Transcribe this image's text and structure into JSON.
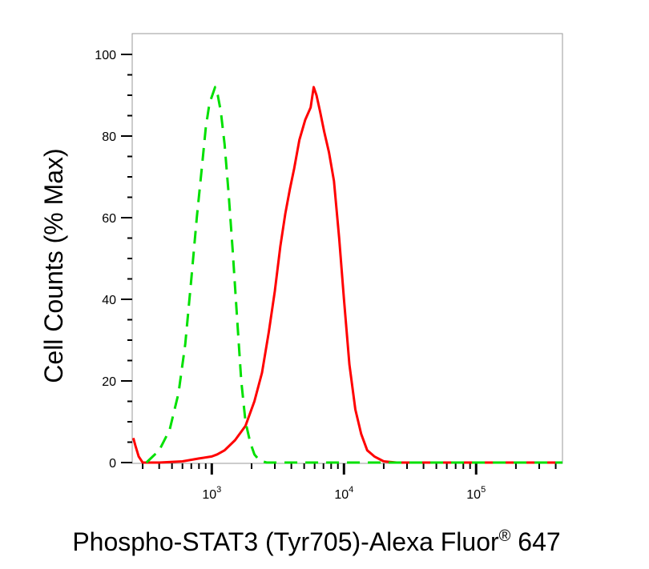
{
  "chart_data": {
    "type": "line",
    "title": "",
    "xlabel": "Phospho-STAT3 (Tyr705)-Alexa Fluor",
    "xlabel_superscript": "®",
    "xlabel_suffix": " 647",
    "ylabel": "Cell Counts (% Max)",
    "x_scale": "log",
    "xlim": [
      250,
      450000
    ],
    "ylim": [
      0,
      100
    ],
    "grid": false,
    "legend": "none",
    "y_ticks": [
      {
        "value": 0,
        "label": "0"
      },
      {
        "value": 20,
        "label": "20"
      },
      {
        "value": 40,
        "label": "40"
      },
      {
        "value": 60,
        "label": "60"
      },
      {
        "value": 80,
        "label": "80"
      },
      {
        "value": 100,
        "label": "100"
      }
    ],
    "x_ticks": [
      {
        "value": 1000,
        "base": "10",
        "exp": "3"
      },
      {
        "value": 10000,
        "base": "10",
        "exp": "4"
      },
      {
        "value": 100000,
        "base": "10",
        "exp": "5"
      }
    ],
    "series": [
      {
        "color": "#ff0000",
        "style": "solid",
        "points": [
          [
            255,
            6
          ],
          [
            265,
            4
          ],
          [
            280,
            1.5
          ],
          [
            300,
            0
          ],
          [
            400,
            0
          ],
          [
            600,
            0.3
          ],
          [
            800,
            1
          ],
          [
            1000,
            1.5
          ],
          [
            1100,
            2
          ],
          [
            1250,
            3
          ],
          [
            1500,
            5.5
          ],
          [
            1800,
            9
          ],
          [
            2100,
            15
          ],
          [
            2400,
            22
          ],
          [
            2700,
            32
          ],
          [
            3000,
            42
          ],
          [
            3300,
            53
          ],
          [
            3600,
            61
          ],
          [
            3900,
            67
          ],
          [
            4200,
            72
          ],
          [
            4600,
            79
          ],
          [
            5100,
            84
          ],
          [
            5600,
            87
          ],
          [
            5900,
            92
          ],
          [
            6200,
            90
          ],
          [
            6600,
            86
          ],
          [
            7100,
            81
          ],
          [
            7700,
            76
          ],
          [
            8400,
            69
          ],
          [
            9200,
            55
          ],
          [
            10000,
            40
          ],
          [
            11000,
            24
          ],
          [
            12200,
            13
          ],
          [
            13500,
            7
          ],
          [
            15000,
            3
          ],
          [
            17000,
            1.5
          ],
          [
            20000,
            0.3
          ],
          [
            25000,
            0
          ],
          [
            100000,
            0
          ],
          [
            450000,
            0
          ]
        ]
      },
      {
        "color": "#00e000",
        "style": "dashed",
        "points": [
          [
            320,
            0
          ],
          [
            400,
            3
          ],
          [
            480,
            8
          ],
          [
            560,
            17
          ],
          [
            630,
            29
          ],
          [
            700,
            45
          ],
          [
            770,
            60
          ],
          [
            840,
            72
          ],
          [
            900,
            82
          ],
          [
            960,
            88
          ],
          [
            1010,
            90
          ],
          [
            1060,
            92
          ],
          [
            1110,
            90
          ],
          [
            1170,
            86
          ],
          [
            1250,
            78
          ],
          [
            1340,
            66
          ],
          [
            1440,
            52
          ],
          [
            1550,
            36
          ],
          [
            1670,
            20
          ],
          [
            1800,
            10
          ],
          [
            1950,
            5
          ],
          [
            2100,
            2
          ],
          [
            2300,
            0.5
          ],
          [
            2600,
            0
          ],
          [
            450000,
            0
          ]
        ]
      }
    ]
  }
}
